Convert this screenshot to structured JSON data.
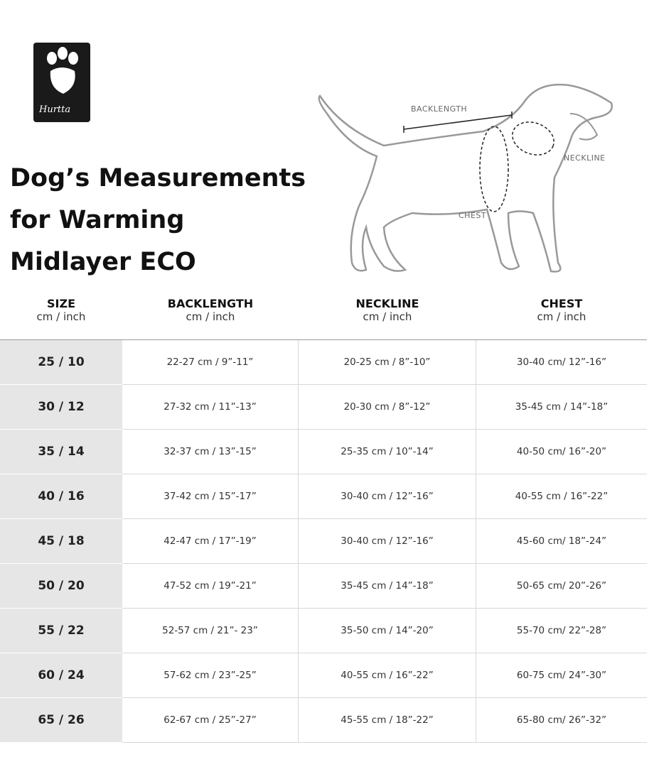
{
  "logo": {
    "brand": "Hurtta"
  },
  "header": {
    "title_lines": [
      "Dog’s Measurements",
      "for Warming",
      "Midlayer ECO"
    ]
  },
  "diagram": {
    "labels": {
      "backlength": "BACKLENGTH",
      "neckline": "NECKLINE",
      "chest": "CHEST"
    }
  },
  "table": {
    "columns": [
      {
        "title": "SIZE",
        "unit": "cm / inch"
      },
      {
        "title": "BACKLENGTH",
        "unit": "cm / inch"
      },
      {
        "title": "NECKLINE",
        "unit": "cm / inch"
      },
      {
        "title": "CHEST",
        "unit": "cm / inch"
      }
    ],
    "rows": [
      [
        "25 / 10",
        "22-27 cm / 9”-11”",
        "20-25 cm / 8”-10”",
        "30-40 cm/ 12”-16”"
      ],
      [
        "30 / 12",
        "27-32 cm / 11”-13”",
        "20-30 cm / 8”-12”",
        "35-45 cm / 14”-18”"
      ],
      [
        "35 / 14",
        "32-37 cm / 13”-15”",
        "25-35 cm / 10”-14”",
        "40-50 cm/ 16”-20”"
      ],
      [
        "40 / 16",
        "37-42 cm / 15”-17”",
        "30-40 cm / 12”-16”",
        "40-55 cm / 16”-22”"
      ],
      [
        "45 / 18",
        "42-47 cm / 17”-19”",
        "30-40 cm / 12”-16”",
        "45-60 cm/ 18”-24”"
      ],
      [
        "50 / 20",
        "47-52 cm / 19”-21”",
        "35-45 cm / 14”-18”",
        "50-65 cm/ 20”-26”"
      ],
      [
        "55 / 22",
        "52-57 cm / 21”- 23”",
        "35-50 cm / 14”-20”",
        "55-70 cm/ 22”-28”"
      ],
      [
        "60 / 24",
        "57-62 cm / 23”-25”",
        "40-55 cm / 16”-22”",
        "60-75 cm/ 24”-30”"
      ],
      [
        "65 / 26",
        "62-67 cm / 25”-27”",
        "45-55 cm / 18”-22”",
        "65-80 cm/ 26”-32”"
      ]
    ]
  }
}
